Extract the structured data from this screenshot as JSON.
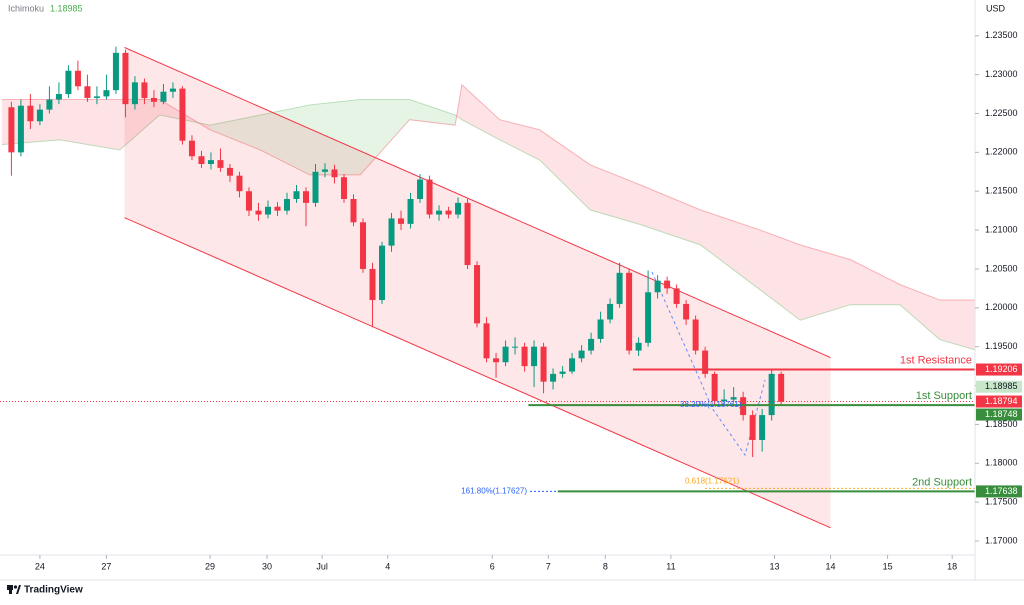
{
  "chart_data": {
    "type": "candlestick",
    "indicator": {
      "name": "Ichimoku",
      "value": 1.18985,
      "color": "#4caf50"
    },
    "currency": "USD",
    "up_color": "#089981",
    "down_color": "#f23645",
    "last_price": 1.18794,
    "x": [
      -3,
      -2,
      -1,
      0,
      1,
      2,
      3,
      4,
      5,
      6,
      7,
      8,
      9,
      10,
      11,
      12,
      13,
      14,
      15,
      16,
      17,
      18,
      19,
      20,
      21,
      22,
      23,
      24,
      25,
      26,
      27,
      28,
      29,
      30,
      31,
      32,
      33,
      34,
      35,
      36,
      37,
      38,
      39,
      40,
      41,
      42,
      43,
      44,
      45,
      46,
      47,
      48,
      49,
      50,
      51,
      52,
      53,
      54,
      55,
      56,
      57,
      58,
      59,
      60,
      61,
      62,
      63,
      64,
      65,
      66,
      67,
      68,
      69,
      70,
      71,
      72,
      73,
      74,
      75,
      76,
      77,
      78
    ],
    "ohlc": [
      [
        1.2258,
        1.2265,
        1.217,
        1.22
      ],
      [
        1.22,
        1.2268,
        1.2195,
        1.226
      ],
      [
        1.226,
        1.2275,
        1.223,
        1.224
      ],
      [
        1.224,
        1.2262,
        1.2235,
        1.2255
      ],
      [
        1.2255,
        1.2285,
        1.225,
        1.2268
      ],
      [
        1.2268,
        1.229,
        1.2262,
        1.2275
      ],
      [
        1.2275,
        1.2312,
        1.227,
        1.2305
      ],
      [
        1.2305,
        1.2318,
        1.228,
        1.2285
      ],
      [
        1.2285,
        1.23,
        1.2265,
        1.227
      ],
      [
        1.227,
        1.2285,
        1.2262,
        1.2272
      ],
      [
        1.2272,
        1.23,
        1.2268,
        1.228
      ],
      [
        1.228,
        1.2336,
        1.2275,
        1.2328
      ],
      [
        1.2328,
        1.2332,
        1.2245,
        1.2262
      ],
      [
        1.2262,
        1.2298,
        1.2255,
        1.229
      ],
      [
        1.229,
        1.2295,
        1.2262,
        1.227
      ],
      [
        1.227,
        1.228,
        1.2258,
        1.2265
      ],
      [
        1.2265,
        1.2288,
        1.2262,
        1.2278
      ],
      [
        1.2278,
        1.229,
        1.227,
        1.2282
      ],
      [
        1.2282,
        1.2285,
        1.221,
        1.2215
      ],
      [
        1.2215,
        1.2222,
        1.219,
        1.2195
      ],
      [
        1.2195,
        1.2202,
        1.218,
        1.2185
      ],
      [
        1.2185,
        1.22,
        1.2178,
        1.219
      ],
      [
        1.219,
        1.2205,
        1.2175,
        1.218
      ],
      [
        1.218,
        1.2185,
        1.2162,
        1.217
      ],
      [
        1.217,
        1.2175,
        1.2142,
        1.215
      ],
      [
        1.215,
        1.2155,
        1.2118,
        1.2125
      ],
      [
        1.2125,
        1.2135,
        1.2112,
        1.212
      ],
      [
        1.212,
        1.2138,
        1.2115,
        1.213
      ],
      [
        1.213,
        1.2136,
        1.2118,
        1.2125
      ],
      [
        1.2125,
        1.2148,
        1.212,
        1.214
      ],
      [
        1.214,
        1.2158,
        1.2135,
        1.215
      ],
      [
        1.215,
        1.2155,
        1.2105,
        1.2135
      ],
      [
        1.2135,
        1.2185,
        1.213,
        1.2175
      ],
      [
        1.2175,
        1.2186,
        1.2168,
        1.2178
      ],
      [
        1.2178,
        1.2184,
        1.216,
        1.2168
      ],
      [
        1.2168,
        1.2172,
        1.2135,
        1.214
      ],
      [
        1.214,
        1.2146,
        1.2105,
        1.211
      ],
      [
        1.211,
        1.2115,
        1.2045,
        1.205
      ],
      [
        1.205,
        1.2058,
        1.1975,
        1.201
      ],
      [
        1.201,
        1.2085,
        1.2005,
        1.208
      ],
      [
        1.208,
        1.2122,
        1.2072,
        1.2115
      ],
      [
        1.2115,
        1.2125,
        1.21,
        1.2108
      ],
      [
        1.2108,
        1.2148,
        1.2102,
        1.214
      ],
      [
        1.214,
        1.2172,
        1.2135,
        1.2165
      ],
      [
        1.2165,
        1.217,
        1.2115,
        1.212
      ],
      [
        1.212,
        1.2132,
        1.2112,
        1.2125
      ],
      [
        1.2125,
        1.213,
        1.2115,
        1.212
      ],
      [
        1.212,
        1.2142,
        1.2115,
        1.2135
      ],
      [
        1.2135,
        1.214,
        1.205,
        1.2055
      ],
      [
        1.2055,
        1.206,
        1.1975,
        1.198
      ],
      [
        1.198,
        1.1988,
        1.193,
        1.1935
      ],
      [
        1.1935,
        1.1942,
        1.191,
        1.193
      ],
      [
        1.193,
        1.1958,
        1.1925,
        1.195
      ],
      [
        1.195,
        1.1962,
        1.194,
        1.195
      ],
      [
        1.195,
        1.1955,
        1.1918,
        1.1925
      ],
      [
        1.1925,
        1.1958,
        1.1898,
        1.195
      ],
      [
        1.195,
        1.1955,
        1.189,
        1.1905
      ],
      [
        1.1905,
        1.1922,
        1.1895,
        1.1915
      ],
      [
        1.1915,
        1.1925,
        1.191,
        1.1918
      ],
      [
        1.1918,
        1.1942,
        1.1915,
        1.1935
      ],
      [
        1.1935,
        1.1952,
        1.193,
        1.1945
      ],
      [
        1.1945,
        1.1968,
        1.194,
        1.196
      ],
      [
        1.196,
        1.1995,
        1.1955,
        1.1985
      ],
      [
        1.1985,
        1.2012,
        1.198,
        1.2005
      ],
      [
        1.2005,
        1.2058,
        1.2,
        1.2045
      ],
      [
        1.2045,
        1.205,
        1.194,
        1.1945
      ],
      [
        1.1945,
        1.1962,
        1.1938,
        1.1955
      ],
      [
        1.1955,
        1.2048,
        1.195,
        1.202
      ],
      [
        1.202,
        1.2042,
        1.2012,
        1.2035
      ],
      [
        1.2035,
        1.204,
        1.2018,
        1.2025
      ],
      [
        1.2025,
        1.203,
        1.2,
        1.2005
      ],
      [
        1.2005,
        1.201,
        1.1978,
        1.1985
      ],
      [
        1.1985,
        1.199,
        1.194,
        1.1945
      ],
      [
        1.1945,
        1.195,
        1.191,
        1.1915
      ],
      [
        1.1915,
        1.1918,
        1.1875,
        1.188
      ],
      [
        1.188,
        1.1895,
        1.1876,
        1.1882
      ],
      [
        1.1882,
        1.1898,
        1.1878,
        1.1885
      ],
      [
        1.1885,
        1.1892,
        1.1855,
        1.1862
      ],
      [
        1.1862,
        1.1868,
        1.1808,
        1.183
      ],
      [
        1.183,
        1.187,
        1.1815,
        1.1862
      ],
      [
        1.1862,
        1.192,
        1.1855,
        1.1915
      ],
      [
        1.1915,
        1.1918,
        1.1875,
        1.1879
      ]
    ],
    "xlim": [
      -4.2,
      98.4
    ],
    "xticks": [
      {
        "value": 0,
        "label": "24"
      },
      {
        "value": 7,
        "label": "27"
      },
      {
        "value": 17.9,
        "label": "29"
      },
      {
        "value": 23.9,
        "label": "30"
      },
      {
        "value": 29.7,
        "label": "Jul"
      },
      {
        "value": 36.6,
        "label": "4"
      },
      {
        "value": 47.6,
        "label": "6"
      },
      {
        "value": 53.5,
        "label": "7"
      },
      {
        "value": 59.5,
        "label": "8"
      },
      {
        "value": 66.4,
        "label": "11"
      },
      {
        "value": 77.3,
        "label": "13"
      },
      {
        "value": 83.2,
        "label": "14"
      },
      {
        "value": 89.2,
        "label": "15"
      },
      {
        "value": 96,
        "label": "18"
      }
    ],
    "ylim": [
      1.1682,
      1.2396
    ],
    "yticks": [
      {
        "value": 1.17,
        "label": "1.17000"
      },
      {
        "value": 1.175,
        "label": "1.17500"
      },
      {
        "value": 1.18,
        "label": "1.18000"
      },
      {
        "value": 1.185,
        "label": "1.18500"
      },
      {
        "value": 1.19,
        "label": "1.19000"
      },
      {
        "value": 1.195,
        "label": "1.19500"
      },
      {
        "value": 1.2,
        "label": "1.20000"
      },
      {
        "value": 1.205,
        "label": "1.20500"
      },
      {
        "value": 1.21,
        "label": "1.21000"
      },
      {
        "value": 1.215,
        "label": "1.21500"
      },
      {
        "value": 1.22,
        "label": "1.22000"
      },
      {
        "value": 1.225,
        "label": "1.22500"
      },
      {
        "value": 1.23,
        "label": "1.23000"
      },
      {
        "value": 1.235,
        "label": "1.23500"
      }
    ],
    "cloud": {
      "x": [
        -4,
        2.1,
        8.4,
        12.6,
        17.9,
        23.2,
        28.4,
        33.7,
        38.9,
        43.7,
        44.4,
        48.4,
        52.6,
        57.9,
        63.2,
        69.5,
        75.8,
        80,
        85.3,
        90.5,
        94.7,
        98.4
      ],
      "span_a": [
        1.221,
        1.2216,
        1.2203,
        1.2248,
        1.2235,
        1.2248,
        1.2261,
        1.2268,
        1.2268,
        1.2248,
        1.2242,
        1.2216,
        1.219,
        1.2126,
        1.2107,
        1.2081,
        1.2023,
        1.1984,
        1.2004,
        1.2004,
        1.1959,
        1.1946
      ],
      "span_b": [
        1.2268,
        1.2268,
        1.2268,
        1.2268,
        1.2229,
        1.2203,
        1.2171,
        1.2171,
        1.2242,
        1.2235,
        1.2287,
        1.2242,
        1.2229,
        1.2184,
        1.2158,
        1.2126,
        1.21,
        1.2081,
        1.2062,
        1.203,
        1.201,
        1.201
      ],
      "up_color": "#4caf50",
      "down_color": "#f23645"
    },
    "channel": {
      "x": [
        8.9,
        83.2
      ],
      "upper": [
        1.2335,
        1.1936
      ],
      "lower": [
        1.2116,
        1.1717
      ],
      "color": "#f23645"
    },
    "levels": [
      {
        "name": "1st Resistance",
        "value": 1.19206,
        "from_x": 62.4,
        "color": "#f23645"
      },
      {
        "name": "1st Support",
        "value": 1.18748,
        "from_x": 51.4,
        "color": "#388e3c"
      },
      {
        "name": "2nd Support",
        "value": 1.17638,
        "from_x": 54.5,
        "color": "#388e3c"
      }
    ],
    "fib_labels": [
      "38.20%(1.18761)",
      "0.618(1.17621)",
      "161.80%(1.17627)"
    ]
  },
  "footer": {
    "brand": "TradingView"
  }
}
